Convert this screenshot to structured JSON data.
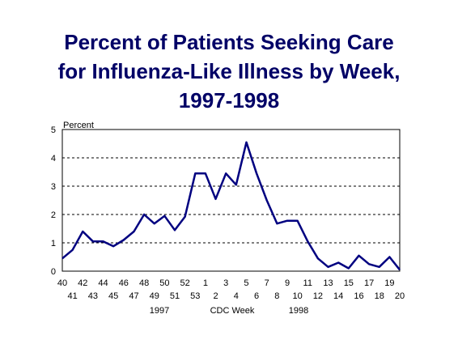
{
  "chart_data": {
    "type": "line",
    "title": [
      "Percent of Patients Seeking Care",
      "for Influenza-Like Illness by Week,",
      "1997-1998"
    ],
    "ylabel": "Percent",
    "xlabel": "CDC Week",
    "year_labels": [
      "1997",
      "1998"
    ],
    "ylim": [
      0,
      5
    ],
    "yticks": [
      0,
      1,
      2,
      3,
      4,
      5
    ],
    "grid": "dashed horizontal",
    "line_color": "#000080",
    "categories": [
      "40",
      "41",
      "42",
      "43",
      "44",
      "45",
      "46",
      "47",
      "48",
      "49",
      "50",
      "51",
      "52",
      "53",
      "1",
      "2",
      "3",
      "4",
      "5",
      "6",
      "7",
      "8",
      "9",
      "10",
      "11",
      "12",
      "13",
      "14",
      "15",
      "16",
      "17",
      "18",
      "19",
      "20"
    ],
    "values": [
      0.45,
      0.75,
      1.4,
      1.05,
      1.05,
      0.88,
      1.1,
      1.4,
      2.0,
      1.68,
      1.95,
      1.45,
      1.92,
      3.45,
      3.45,
      2.55,
      3.45,
      3.05,
      4.55,
      3.45,
      2.5,
      1.68,
      1.78,
      1.78,
      1.05,
      0.45,
      0.15,
      0.3,
      0.1,
      0.55,
      0.25,
      0.15,
      0.5,
      0.05
    ]
  }
}
